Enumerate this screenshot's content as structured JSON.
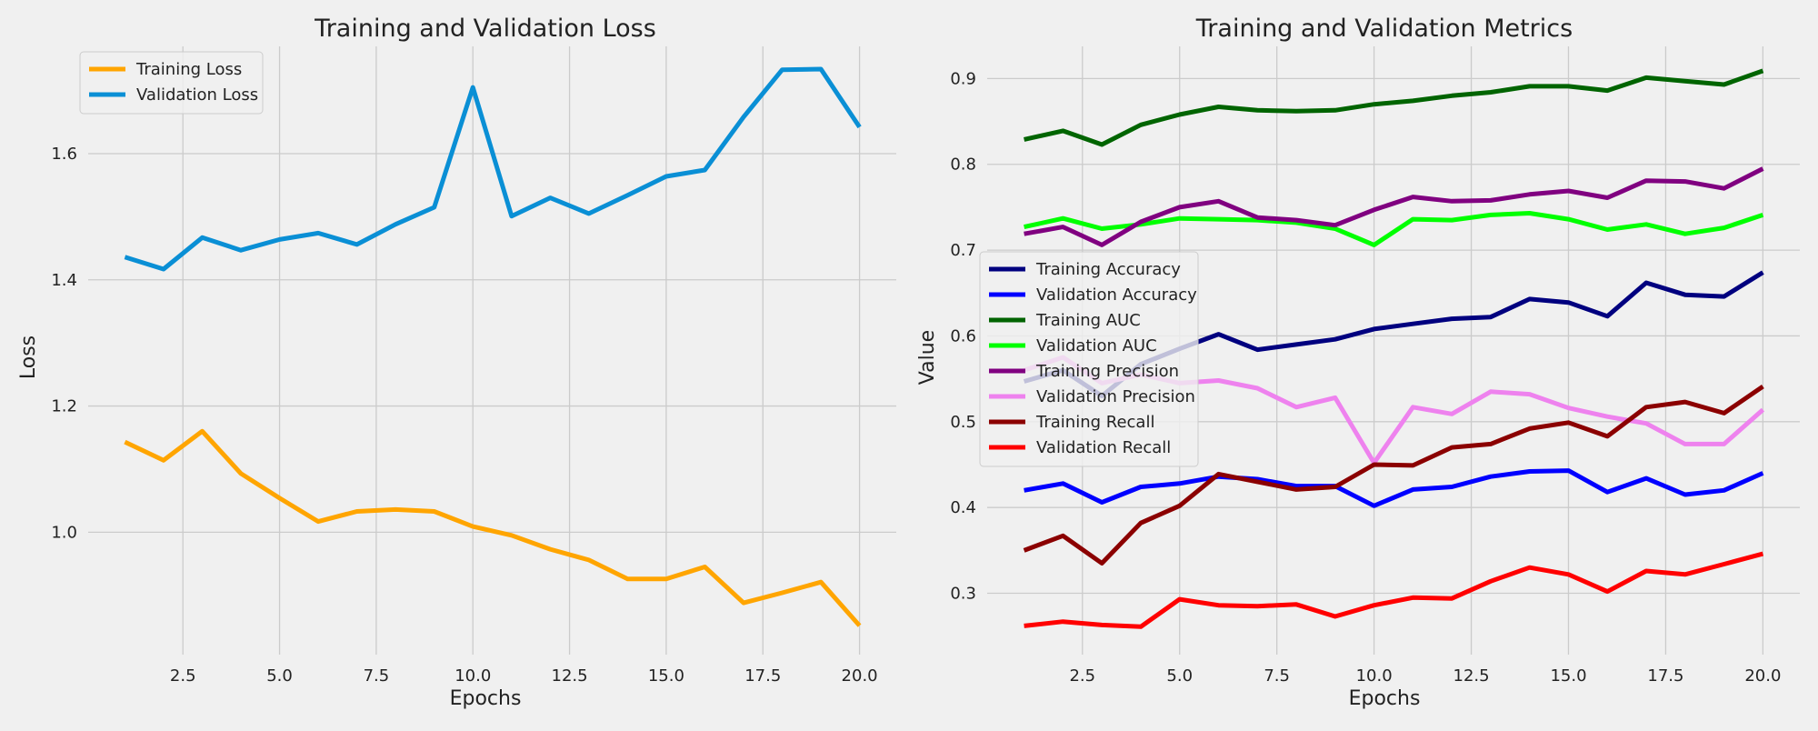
{
  "colors": {
    "background": "#f0f0f0",
    "grid": "#cbcbcb",
    "legend_border": "#cccccc"
  },
  "chart_data": [
    {
      "type": "line",
      "title": "Training and Validation Loss",
      "xlabel": "Epochs",
      "ylabel": "Loss",
      "xlim": [
        0.05,
        20.95
      ],
      "ylim": [
        0.806,
        1.77
      ],
      "xticks": [
        2.5,
        5.0,
        7.5,
        10.0,
        12.5,
        15.0,
        17.5,
        20.0
      ],
      "xtick_labels": [
        "2.5",
        "5.0",
        "7.5",
        "10.0",
        "12.5",
        "15.0",
        "17.5",
        "20.0"
      ],
      "yticks": [
        1.0,
        1.2,
        1.4,
        1.6
      ],
      "ytick_labels": [
        "1.0",
        "1.2",
        "1.4",
        "1.6"
      ],
      "grid": true,
      "legend_position": "upper-left",
      "x": [
        1,
        2,
        3,
        4,
        5,
        6,
        7,
        8,
        9,
        10,
        11,
        12,
        13,
        14,
        15,
        16,
        17,
        18,
        19,
        20
      ],
      "series": [
        {
          "name": "Training Loss",
          "color": "#ffa500",
          "values": [
            1.143,
            1.114,
            1.16,
            1.093,
            1.054,
            1.017,
            1.033,
            1.036,
            1.033,
            1.009,
            0.995,
            0.973,
            0.956,
            0.926,
            0.926,
            0.945,
            0.888,
            0.904,
            0.921,
            0.852
          ]
        },
        {
          "name": "Validation Loss",
          "color": "#0a8fd5",
          "values": [
            1.436,
            1.417,
            1.467,
            1.447,
            1.464,
            1.474,
            1.456,
            1.488,
            1.515,
            1.705,
            1.501,
            1.53,
            1.505,
            1.534,
            1.564,
            1.574,
            1.658,
            1.733,
            1.734,
            1.642
          ]
        }
      ]
    },
    {
      "type": "line",
      "title": "Training and Validation Metrics",
      "xlabel": "Epochs",
      "ylabel": "Value",
      "xlim": [
        0.05,
        20.95
      ],
      "ylim": [
        0.2285,
        0.9375
      ],
      "xticks": [
        2.5,
        5.0,
        7.5,
        10.0,
        12.5,
        15.0,
        17.5,
        20.0
      ],
      "xtick_labels": [
        "2.5",
        "5.0",
        "7.5",
        "10.0",
        "12.5",
        "15.0",
        "17.5",
        "20.0"
      ],
      "yticks": [
        0.3,
        0.4,
        0.5,
        0.6,
        0.7,
        0.8,
        0.9
      ],
      "ytick_labels": [
        "0.3",
        "0.4",
        "0.5",
        "0.6",
        "0.7",
        "0.8",
        "0.9"
      ],
      "grid": true,
      "legend_position": "center-left",
      "x": [
        1,
        2,
        3,
        4,
        5,
        6,
        7,
        8,
        9,
        10,
        11,
        12,
        13,
        14,
        15,
        16,
        17,
        18,
        19,
        20
      ],
      "series": [
        {
          "name": "Training Accuracy",
          "color": "#00007f",
          "values": [
            0.547,
            0.56,
            0.53,
            0.567,
            0.585,
            0.602,
            0.584,
            0.59,
            0.596,
            0.608,
            0.614,
            0.62,
            0.622,
            0.643,
            0.639,
            0.623,
            0.662,
            0.648,
            0.646,
            0.674
          ]
        },
        {
          "name": "Validation Accuracy",
          "color": "#0000ff",
          "values": [
            0.42,
            0.428,
            0.406,
            0.424,
            0.428,
            0.436,
            0.433,
            0.425,
            0.425,
            0.402,
            0.421,
            0.424,
            0.436,
            0.442,
            0.443,
            0.418,
            0.434,
            0.415,
            0.42,
            0.44
          ]
        },
        {
          "name": "Training AUC",
          "color": "#006400",
          "values": [
            0.829,
            0.839,
            0.823,
            0.846,
            0.858,
            0.867,
            0.863,
            0.862,
            0.863,
            0.87,
            0.874,
            0.88,
            0.884,
            0.891,
            0.891,
            0.886,
            0.901,
            0.897,
            0.893,
            0.909
          ]
        },
        {
          "name": "Validation AUC",
          "color": "#00ff00",
          "values": [
            0.727,
            0.737,
            0.725,
            0.73,
            0.737,
            0.736,
            0.735,
            0.732,
            0.725,
            0.706,
            0.736,
            0.735,
            0.741,
            0.743,
            0.736,
            0.724,
            0.73,
            0.719,
            0.726,
            0.741
          ]
        },
        {
          "name": "Training Precision",
          "color": "#800080",
          "values": [
            0.719,
            0.727,
            0.706,
            0.733,
            0.75,
            0.757,
            0.738,
            0.735,
            0.729,
            0.747,
            0.762,
            0.757,
            0.758,
            0.765,
            0.769,
            0.761,
            0.781,
            0.78,
            0.772,
            0.795
          ]
        },
        {
          "name": "Validation Precision",
          "color": "#ee82ee",
          "values": [
            0.56,
            0.575,
            0.545,
            0.555,
            0.545,
            0.548,
            0.539,
            0.517,
            0.528,
            0.452,
            0.517,
            0.509,
            0.535,
            0.532,
            0.516,
            0.506,
            0.498,
            0.474,
            0.474,
            0.514
          ]
        },
        {
          "name": "Training Recall",
          "color": "#8b0000",
          "values": [
            0.35,
            0.367,
            0.335,
            0.382,
            0.402,
            0.439,
            0.43,
            0.421,
            0.424,
            0.45,
            0.449,
            0.47,
            0.474,
            0.492,
            0.499,
            0.483,
            0.517,
            0.523,
            0.51,
            0.541
          ]
        },
        {
          "name": "Validation Recall",
          "color": "#ff0000",
          "values": [
            0.262,
            0.267,
            0.263,
            0.261,
            0.293,
            0.286,
            0.285,
            0.287,
            0.273,
            0.286,
            0.295,
            0.294,
            0.314,
            0.33,
            0.322,
            0.302,
            0.326,
            0.322,
            0.334,
            0.346
          ]
        }
      ]
    }
  ]
}
